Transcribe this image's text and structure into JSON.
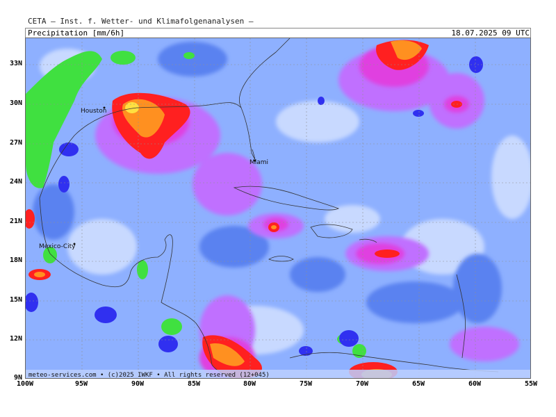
{
  "header": {
    "organization": "CETA — Inst. f. Wetter- und Klimafolgenanalysen —",
    "parameter": "Precipitation [mm/6h]",
    "datetime": "18.07.2025 09 UTC"
  },
  "map": {
    "lat_labels": [
      "33N",
      "30N",
      "27N",
      "24N",
      "21N",
      "18N",
      "15N",
      "12N",
      "9N"
    ],
    "lon_labels": [
      "100W",
      "95W",
      "90W",
      "85W",
      "80W",
      "75W",
      "70W",
      "65W",
      "60W",
      "55W"
    ],
    "cities": [
      {
        "name": "Houston"
      },
      {
        "name": "Miami"
      },
      {
        "name": "Mexico-City"
      }
    ],
    "credit": "meteo-services.com • (c)2025 IWKF • All rights reserved (12+045)",
    "colors": {
      "background_rain": "#8eb0ff",
      "light": "#c8d9ff",
      "blue": "#5a82f0",
      "purple": "#c070ff",
      "magenta": "#e040e0",
      "red": "#ff2020",
      "orange": "#ff9020",
      "yellow": "#ffe040",
      "green": "#40e040",
      "dark_blue": "#3030f0"
    }
  }
}
